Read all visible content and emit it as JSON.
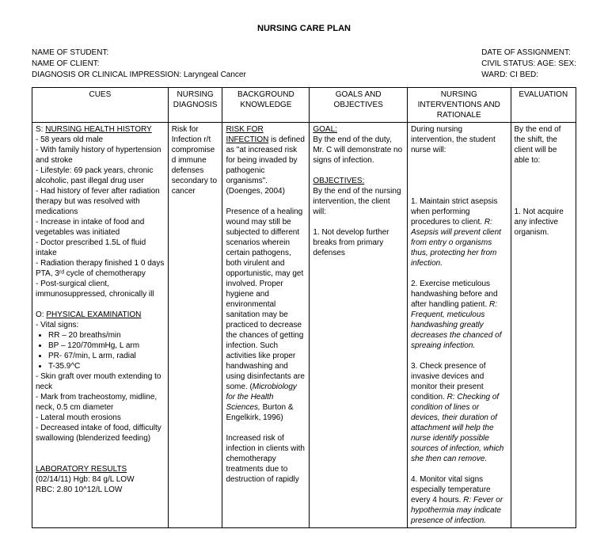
{
  "title": "NURSING CARE PLAN",
  "header": {
    "left": {
      "student": "NAME OF STUDENT:",
      "client": "NAME OF CLIENT:",
      "diagnosis": "DIAGNOSIS OR CLINICAL IMPRESSION: Laryngeal Cancer"
    },
    "right": {
      "assignment": "DATE OF ASSIGNMENT:",
      "civil": "CIVIL STATUS: AGE: SEX:",
      "ward": "WARD: CI       BED:"
    }
  },
  "columns": {
    "c1": "CUES",
    "c2": "NURSING DIAGNOSIS",
    "c3": "BACKGROUND KNOWLEDGE",
    "c4": "GOALS AND OBJECTIVES",
    "c5": "NURSING INTERVENTIONS AND RATIONALE",
    "c6": "EVALUATION"
  },
  "colwidths": {
    "c1": "25%",
    "c2": "10%",
    "c3": "16%",
    "c4": "18%",
    "c5": "19%",
    "c6": "12%"
  },
  "cues": {
    "s_heading": "NURSING HEALTH HISTORY",
    "s_prefix": "S: ",
    "s_lines": [
      "- 58 years old male",
      "- With family history of hypertension and stroke",
      "- Lifestyle: 69 pack years, chronic alcoholic, past illegal drug user",
      "- Had history of fever after radiation therapy but was resolved with medications",
      "- Increase in intake of food and vegetables was initiated",
      "- Doctor prescribed 1.5L of fluid intake",
      "- Radiation therapy finished 1 0 days PTA, 3ʳᵈ cycle of chemotherapy",
      "- Post-surgical client, immunosuppressed, chronically ill"
    ],
    "o_heading": "PHYSICAL EXAMINATION",
    "o_prefix": "O: ",
    "o_lines": [
      "- Vital signs:"
    ],
    "vitals": [
      "RR – 20 breaths/min",
      "BP – 120/70mmHg,  L arm",
      "PR- 67/min, L arm, radial",
      "T-35.9^C"
    ],
    "o_lines2": [
      "- Skin graft over mouth extending to neck",
      "- Mark from tracheostomy, midline, neck, 0.5 cm diameter",
      "- Lateral mouth erosions",
      "- Decreased intake of food, difficulty swallowing (blenderized feeding)"
    ],
    "lab_heading": "LABORATORY RESULTS",
    "lab_lines": [
      "(02/14/11) Hgb: 84 g/L LOW",
      "RBC: 2.80 10^12/L LOW"
    ]
  },
  "diagnosis": "Risk for Infection r/t compromised immune defenses secondary to cancer",
  "background": {
    "h1": "RISK FOR INFECTION",
    "p1": "is defined as \"at increased risk for being invaded by pathogenic organisms\". (Doenges, 2004)",
    "p2a": "Presence of a healing wound may still be subjected to different scenarios wherein certain pathogens, both virulent and opportunistic, may get involved. Proper hygiene and environmental sanitation may be practiced to decrease the chances of getting infection. Such activities like proper handwashing and using disinfectants are some. (",
    "p2i": "Microbiology for the Health Sciences,",
    "p2b": " Burton & Engelkirk, 1996)",
    "p3": "Increased risk of infection in clients with chemotherapy treatments due to destruction of rapidly"
  },
  "goals": {
    "goal_label": "GOAL:",
    "goal_text": "By the end of the duty, Mr. C will demonstrate no signs of infection.",
    "obj_label": "OBJECTIVES:",
    "obj_text": "By the end of the nursing intervention, the client will:",
    "obj1": "1. Not develop further breaks from primary defenses"
  },
  "interventions": {
    "intro": "During nursing intervention, the student nurse will:",
    "i1a": "1. Maintain strict asepsis when performing procedures to client. ",
    "i1r": "R: Asepsis will prevent client from entry o organisms thus, protecting her from infection.",
    "i2a": "2. Exercise meticulous handwashing before and after handling patient. ",
    "i2r": "R: Frequent, meticulous handwashing greatly decreases the chanced of spreaing infection.",
    "i3a": "3. Check presence of invasive devices and monitor their present condition. ",
    "i3r": "R: Checking of condition of lines or devices, their duration of attachment will help the nurse identify possible sources of infection, which she then can remove.",
    "i4a": "4. Monitor vital signs especially temperature every 4 hours. ",
    "i4r": "R: Fever or hypothermia may indicate presence of infection."
  },
  "evaluation": {
    "e1": "By the end of the shift, the client will be able to:",
    "e2": "1. Not acquire any infective organism."
  }
}
